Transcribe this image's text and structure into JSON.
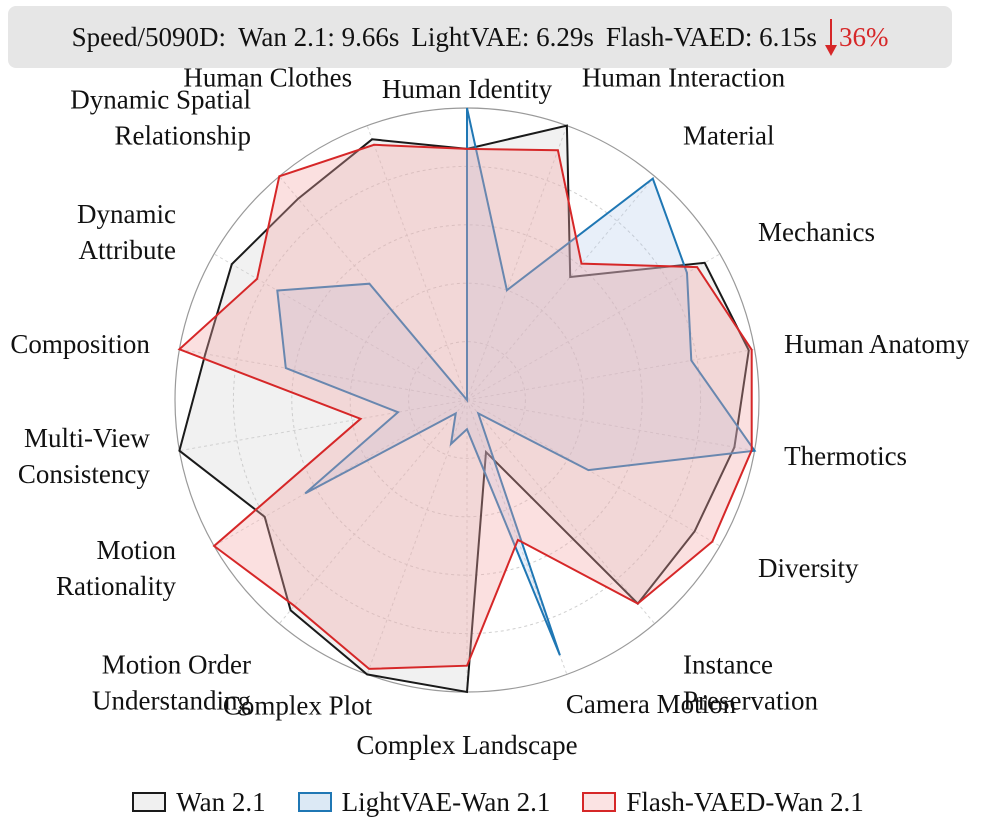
{
  "banner": {
    "speed_label": "Speed/5090D:",
    "wan_text": "Wan 2.1: 9.66s",
    "lightvae_text": "LightVAE: 6.29s",
    "flash_text": "Flash-VAED: 6.15s",
    "reduction_text": "36%",
    "reduction_color": "#d62728"
  },
  "chart_data": {
    "type": "radar",
    "title": "",
    "range": [
      0,
      1
    ],
    "grid": true,
    "legend_position": "bottom",
    "categories": [
      {
        "label": "Human Identity",
        "lines": [
          "Human Identity"
        ],
        "anchor": "middle"
      },
      {
        "label": "Human Interaction",
        "lines": [
          "Human Interaction"
        ],
        "anchor": "start"
      },
      {
        "label": "Material",
        "lines": [
          "Material"
        ],
        "anchor": "start"
      },
      {
        "label": "Mechanics",
        "lines": [
          "Mechanics"
        ],
        "anchor": "start"
      },
      {
        "label": "Human Anatomy",
        "lines": [
          "Human Anatomy"
        ],
        "anchor": "start"
      },
      {
        "label": "Thermotics",
        "lines": [
          "Thermotics"
        ],
        "anchor": "start"
      },
      {
        "label": "Diversity",
        "lines": [
          "Diversity"
        ],
        "anchor": "start"
      },
      {
        "label": "Instance Preservation",
        "lines": [
          "Instance",
          "Preservation"
        ],
        "anchor": "start"
      },
      {
        "label": "Camera Motion",
        "lines": [
          "Camera Motion"
        ],
        "anchor": "start"
      },
      {
        "label": "Complex Landscape",
        "lines": [
          "Complex Landscape"
        ],
        "anchor": "middle"
      },
      {
        "label": "Complex Plot",
        "lines": [
          "Complex Plot"
        ],
        "anchor": "end"
      },
      {
        "label": "Motion Order Understanding",
        "lines": [
          "Motion Order",
          "Understanding"
        ],
        "anchor": "end"
      },
      {
        "label": "Motion Rationality",
        "lines": [
          "Motion",
          "Rationality"
        ],
        "anchor": "end"
      },
      {
        "label": "Multi-View Consistency",
        "lines": [
          "Multi-View",
          "Consistency"
        ],
        "anchor": "end"
      },
      {
        "label": "Composition",
        "lines": [
          "Composition"
        ],
        "anchor": "end"
      },
      {
        "label": "Dynamic Attribute",
        "lines": [
          "Dynamic",
          "Attribute"
        ],
        "anchor": "end"
      },
      {
        "label": "Dynamic Spatial Relationship",
        "lines": [
          "Dynamic Spatial",
          "Relationship"
        ],
        "anchor": "end"
      },
      {
        "label": "Human Clothes",
        "lines": [
          "Human Clothes"
        ],
        "anchor": "end"
      }
    ],
    "series": [
      {
        "name": "Wan 2.1",
        "color": "#1a1a1a",
        "fill": "#c8c8c8",
        "fill_opacity": 0.25,
        "values": [
          0.86,
          1.0,
          0.55,
          0.94,
          0.98,
          0.93,
          0.9,
          0.91,
          0.19,
          1.0,
          1.0,
          0.94,
          0.8,
          1.0,
          0.91,
          0.93,
          0.9,
          0.95
        ]
      },
      {
        "name": "LightVAE-Wan 2.1",
        "color": "#1f77b4",
        "fill": "#aec7e8",
        "fill_opacity": 0.28,
        "values": [
          1.0,
          0.4,
          0.99,
          0.87,
          0.78,
          1.0,
          0.48,
          0.06,
          0.93,
          0.1,
          0.16,
          0.06,
          0.64,
          0.24,
          0.63,
          0.75,
          0.52,
          0.0
        ]
      },
      {
        "name": "Flash-VAED-Wan 2.1",
        "color": "#d62728",
        "fill": "#f4a6a6",
        "fill_opacity": 0.35,
        "values": [
          0.86,
          0.91,
          0.61,
          0.91,
          0.99,
          0.99,
          0.97,
          0.91,
          0.51,
          0.91,
          0.98,
          0.92,
          1.0,
          0.37,
          1.0,
          0.83,
          1.0,
          0.93
        ]
      }
    ]
  },
  "legend": {
    "items": [
      "Wan 2.1",
      "LightVAE-Wan 2.1",
      "Flash-VAED-Wan 2.1"
    ],
    "edge_colors": [
      "#1a1a1a",
      "#1f77b4",
      "#d62728"
    ],
    "fill_colors": [
      "#f0f0f0",
      "#dce9f5",
      "#fbe3e3"
    ]
  }
}
